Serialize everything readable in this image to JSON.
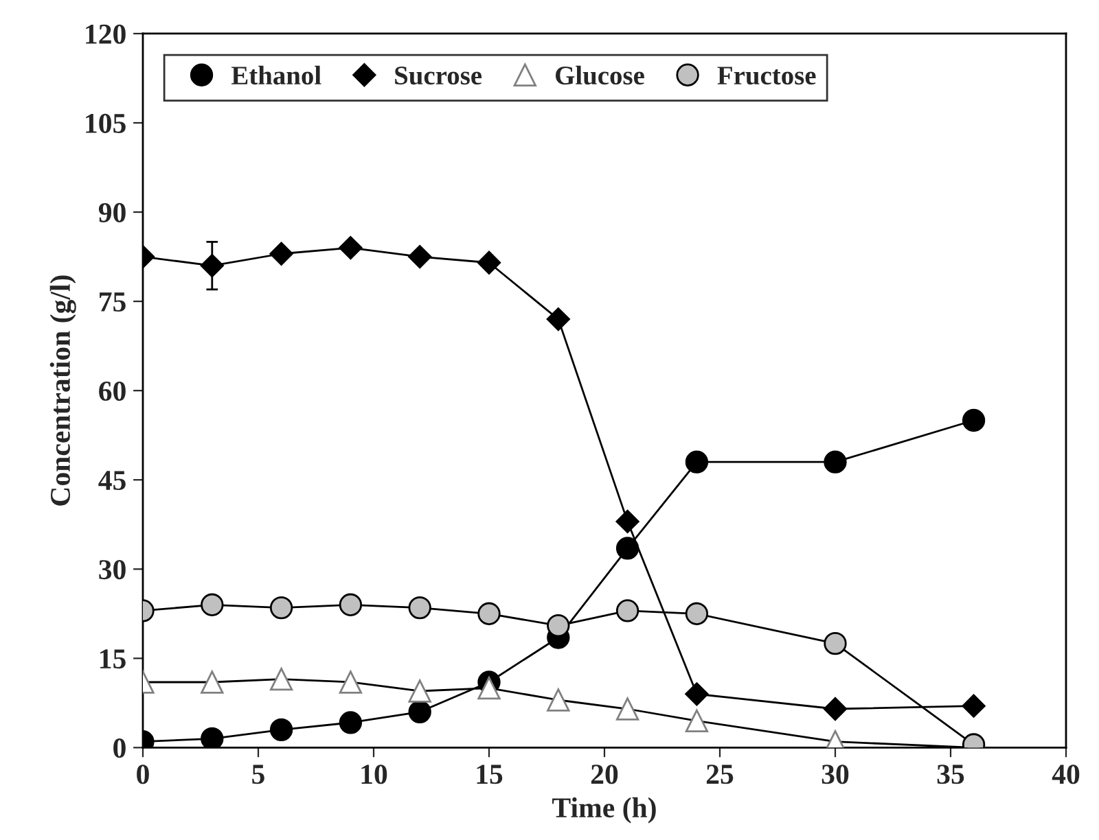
{
  "chart_data": {
    "type": "line",
    "xlabel": "Time (h)",
    "ylabel": "Concentration (g/l)",
    "xlim": [
      0,
      40
    ],
    "xticks": [
      0,
      5,
      10,
      15,
      20,
      25,
      30,
      35,
      40
    ],
    "ylim": [
      0,
      120
    ],
    "yticks": [
      0,
      15,
      30,
      45,
      60,
      75,
      90,
      105,
      120
    ],
    "grid": false,
    "legend": "top left",
    "series": [
      {
        "name": "Ethanol",
        "color": "#000000",
        "marker": "circle",
        "x": [
          0,
          3,
          6,
          9,
          12,
          15,
          18,
          21,
          24,
          30,
          36
        ],
        "values": [
          1,
          1.5,
          3,
          4.2,
          6,
          11,
          18.5,
          33.5,
          48,
          48,
          55
        ]
      },
      {
        "name": "Sucrose",
        "color": "#000000",
        "marker": "diamond",
        "x": [
          0,
          3,
          6,
          9,
          12,
          15,
          18,
          21,
          24,
          30,
          36
        ],
        "values": [
          82.5,
          81,
          83,
          84,
          82.5,
          81.5,
          72,
          38,
          9,
          6.5,
          7
        ],
        "errors": [
          null,
          4,
          null,
          null,
          null,
          null,
          null,
          null,
          null,
          null,
          null
        ]
      },
      {
        "name": "Glucose",
        "color": "#ffffff",
        "marker": "triangle",
        "x": [
          0,
          3,
          6,
          9,
          12,
          15,
          18,
          21,
          24,
          30,
          36
        ],
        "values": [
          11,
          11,
          11.5,
          11,
          9.5,
          10,
          8,
          6.5,
          4.5,
          1,
          0
        ]
      },
      {
        "name": "Fructose",
        "color": "#c0c0c0",
        "marker": "circle",
        "x": [
          0,
          3,
          6,
          9,
          12,
          15,
          18,
          21,
          24,
          30,
          36
        ],
        "values": [
          23,
          24,
          23.5,
          24,
          23.5,
          22.5,
          20.5,
          23,
          22.5,
          17.5,
          0.5
        ]
      }
    ]
  }
}
